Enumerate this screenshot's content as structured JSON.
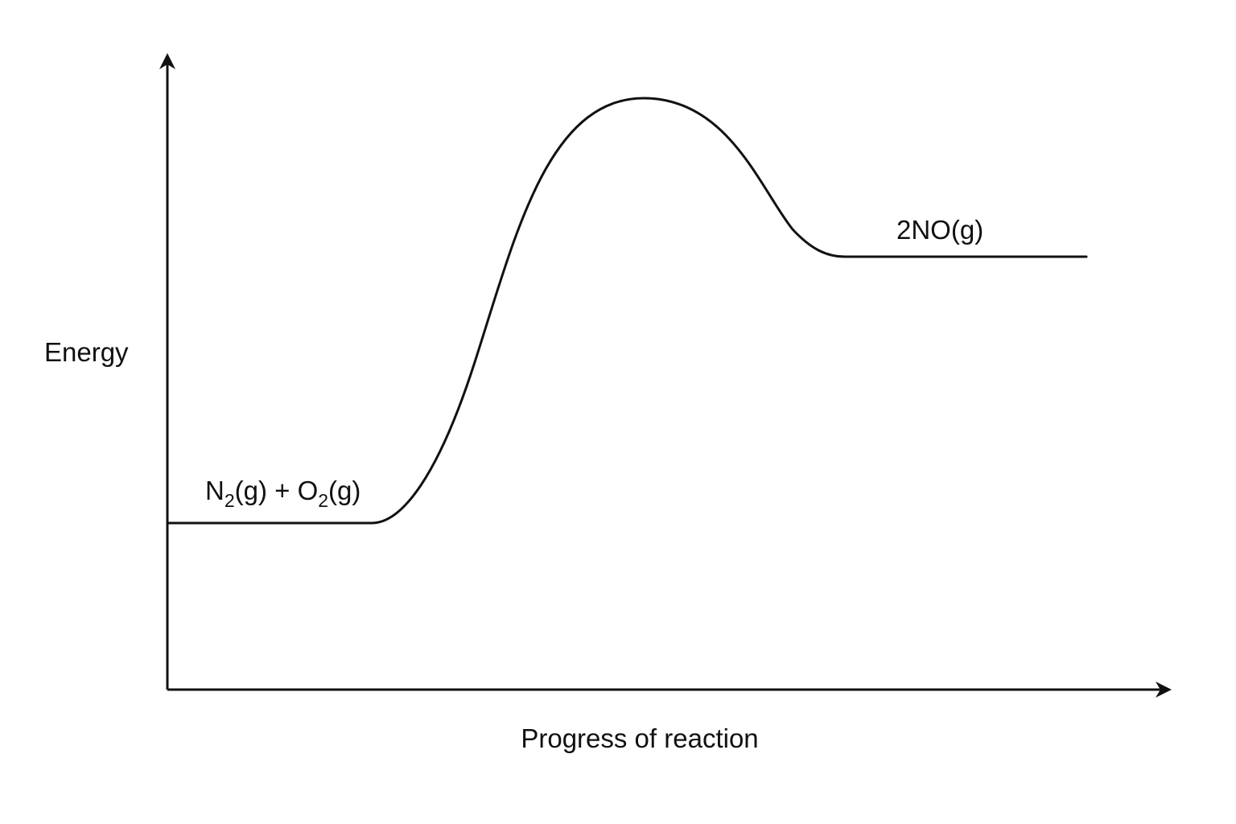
{
  "y_axis_label": "Energy",
  "x_axis_label": "Progress of reaction",
  "reactants": {
    "species_1": "N",
    "subscript_1": "2",
    "state_1": "(g) + O",
    "subscript_2": "2",
    "state_2": "(g)"
  },
  "products": {
    "label": "2NO(g)"
  },
  "colors": {
    "line": "#111111",
    "background": "#ffffff"
  }
}
